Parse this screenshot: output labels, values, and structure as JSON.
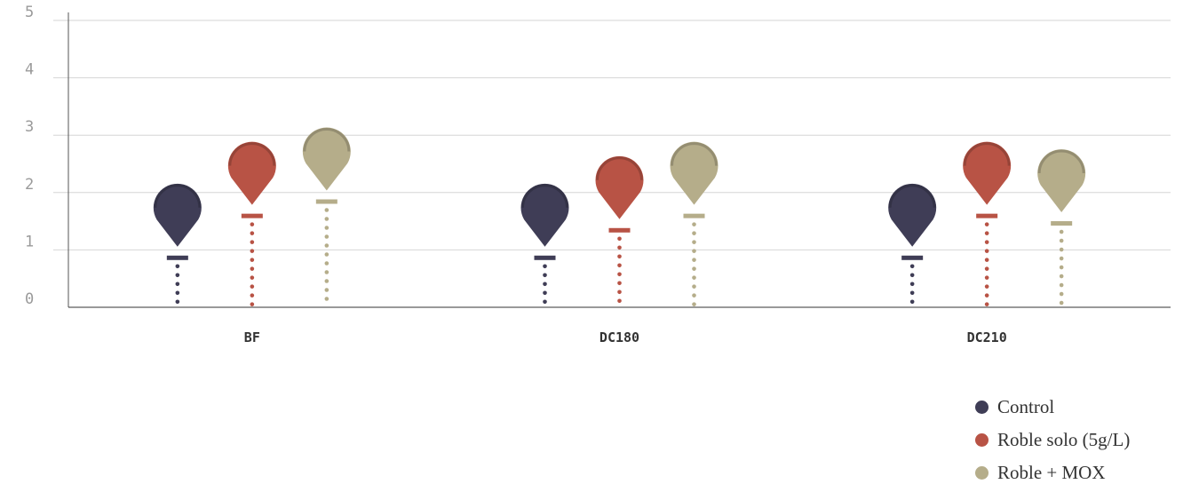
{
  "chart_data": {
    "type": "scatter",
    "categories": [
      "BF",
      "DC180",
      "DC210"
    ],
    "series": [
      {
        "name": "Control",
        "color": "#3f3d56",
        "values": [
          0.87,
          0.87,
          0.87
        ]
      },
      {
        "name": "Roble solo (5g/L)",
        "color": "#b85345",
        "values": [
          1.6,
          1.35,
          1.6
        ]
      },
      {
        "name": "Roble + MOX",
        "color": "#b5ad8a",
        "values": [
          1.85,
          1.6,
          1.47
        ]
      }
    ],
    "yticks": [
      "0",
      "1",
      "2",
      "3",
      "4",
      "5"
    ],
    "ylim": [
      0,
      5
    ],
    "grid": true,
    "legend_position": "bottom-right",
    "marker": "map-pin"
  }
}
